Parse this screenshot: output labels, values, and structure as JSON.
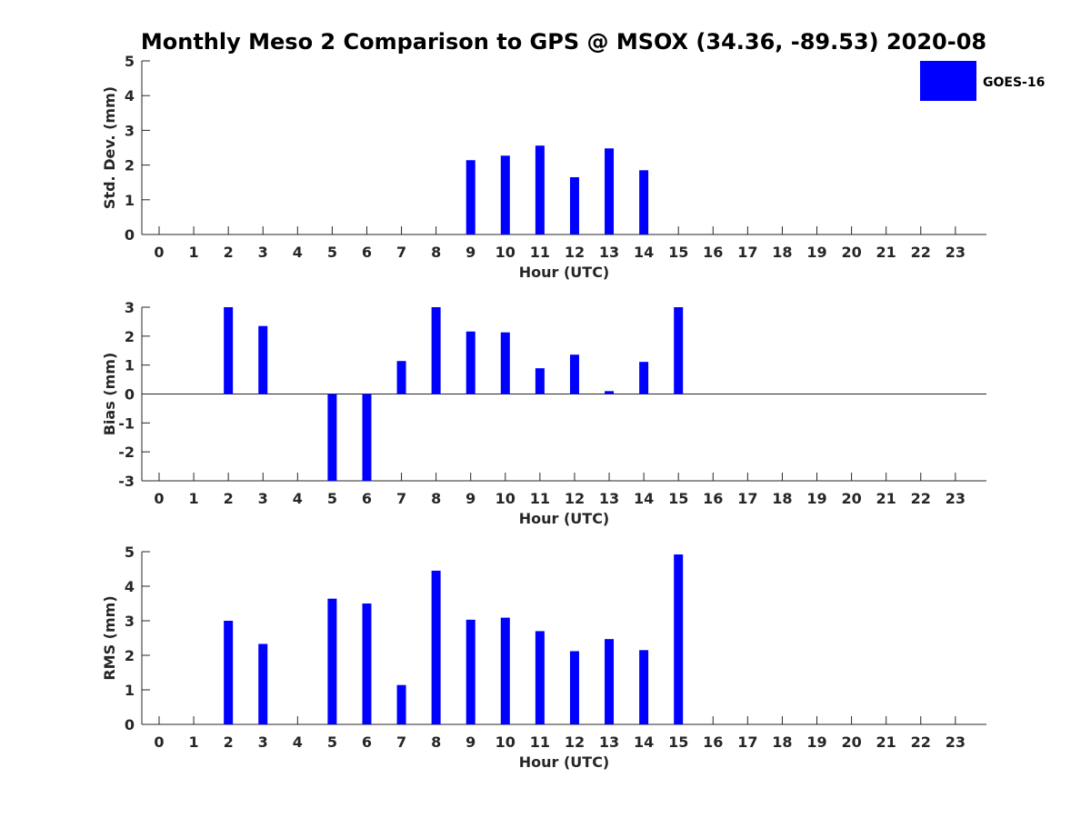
{
  "title": "Monthly Meso 2 Comparison to GPS @ MSOX (34.36, -89.53) 2020-08",
  "legend": {
    "label": "GOES-16",
    "color": "#0000ff",
    "placement": "top-right"
  },
  "colors": {
    "bar": "#0000ff",
    "axis": "#262626"
  },
  "chart_data": [
    {
      "type": "bar",
      "name": "std-dev",
      "xlabel": "Hour (UTC)",
      "ylabel": "Std. Dev. (mm)",
      "ylim": [
        0,
        5
      ],
      "yticks": [
        0,
        1,
        2,
        3,
        4,
        5
      ],
      "categories": [
        "0",
        "1",
        "2",
        "3",
        "4",
        "5",
        "6",
        "7",
        "8",
        "9",
        "10",
        "11",
        "12",
        "13",
        "14",
        "15",
        "16",
        "17",
        "18",
        "19",
        "20",
        "21",
        "22",
        "23"
      ],
      "values": [
        null,
        null,
        null,
        null,
        null,
        null,
        null,
        null,
        null,
        2.14,
        2.27,
        2.56,
        1.65,
        2.48,
        1.85,
        null,
        null,
        null,
        null,
        null,
        null,
        null,
        null,
        null
      ]
    },
    {
      "type": "bar",
      "name": "bias",
      "xlabel": "Hour (UTC)",
      "ylabel": "Bias (mm)",
      "ylim": [
        -3,
        3
      ],
      "yticks": [
        -3,
        -2,
        -1,
        0,
        1,
        2,
        3
      ],
      "zero_line": true,
      "categories": [
        "0",
        "1",
        "2",
        "3",
        "4",
        "5",
        "6",
        "7",
        "8",
        "9",
        "10",
        "11",
        "12",
        "13",
        "14",
        "15",
        "16",
        "17",
        "18",
        "19",
        "20",
        "21",
        "22",
        "23"
      ],
      "values": [
        null,
        null,
        3.0,
        2.35,
        null,
        -3.0,
        -3.0,
        1.14,
        3.0,
        2.16,
        2.13,
        0.89,
        1.36,
        0.1,
        1.11,
        3.0,
        null,
        null,
        null,
        null,
        null,
        null,
        null,
        null
      ]
    },
    {
      "type": "bar",
      "name": "rms",
      "xlabel": "Hour (UTC)",
      "ylabel": "RMS (mm)",
      "ylim": [
        0,
        5
      ],
      "yticks": [
        0,
        1,
        2,
        3,
        4,
        5
      ],
      "categories": [
        "0",
        "1",
        "2",
        "3",
        "4",
        "5",
        "6",
        "7",
        "8",
        "9",
        "10",
        "11",
        "12",
        "13",
        "14",
        "15",
        "16",
        "17",
        "18",
        "19",
        "20",
        "21",
        "22",
        "23"
      ],
      "values": [
        null,
        null,
        3.0,
        2.33,
        null,
        3.64,
        3.5,
        1.14,
        4.45,
        3.03,
        3.09,
        2.7,
        2.12,
        2.47,
        2.15,
        4.92,
        null,
        null,
        null,
        null,
        null,
        null,
        null,
        null
      ]
    }
  ]
}
